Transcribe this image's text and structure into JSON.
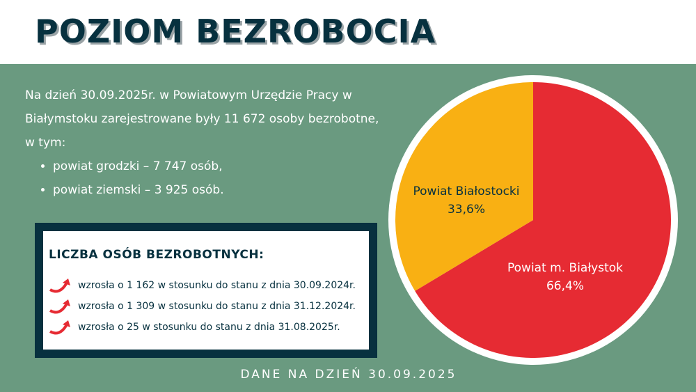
{
  "header": {
    "title": "POZIOM BEZROBOCIA"
  },
  "intro": {
    "text": "Na dzień 30.09.2025r. w Powiatowym Urzędzie Pracy w Białymstoku zarejestrowane były 11 672 osoby bezrobotne, w tym:",
    "bullets": [
      "powiat grodzki – 7 747 osób,",
      "powiat ziemski – 3 925 osób."
    ]
  },
  "box": {
    "title": "LICZBA OSÓB BEZROBOTNYCH:",
    "icon": "red-curved-up-arrow-icon",
    "items": [
      "wzrosła o 1 162 w stosunku do stanu z dnia 30.09.2024r.",
      "wzrosła o 1 309 w stosunku do stanu z dnia 31.12.2024r.",
      "wzrosła o 25 w stosunku do stanu z dnia 31.08.2025r."
    ]
  },
  "footer": {
    "text": "DANE NA DZIEŃ 30.09.2025"
  },
  "colors": {
    "dark": "#07313f",
    "green": "#6a9a80",
    "red": "#e62b33",
    "yellow": "#f9b013"
  },
  "chart_data": {
    "type": "pie",
    "slices": [
      {
        "label": "Powiat m. Białystok",
        "value": 66.4,
        "value_label": "66,4%",
        "color": "#e62b33"
      },
      {
        "label": "Powiat Białostocki",
        "value": 33.6,
        "value_label": "33,6%",
        "color": "#f9b013"
      }
    ]
  }
}
